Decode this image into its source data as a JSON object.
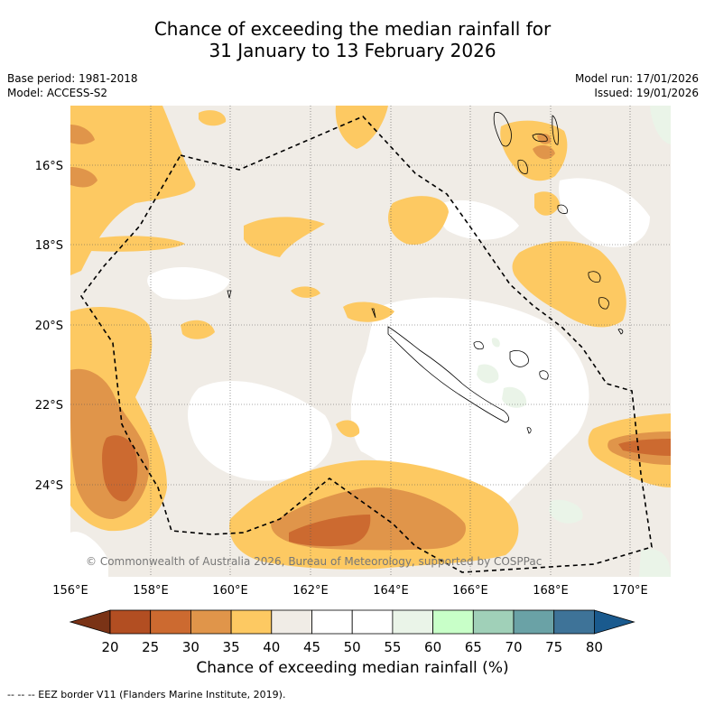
{
  "title_line1": "Chance of exceeding the median rainfall for",
  "title_line2": "31 January to 13 February 2026",
  "base_period": "Base period: 1981-2018",
  "model": "Model: ACCESS-S2",
  "model_run": "Model run: 17/01/2026",
  "issued": "Issued: 19/01/2026",
  "copyright": "© Commonwealth of Australia 2026, Bureau of Meteorology, supported by COSPPac",
  "lat_labels": [
    "16°S",
    "18°S",
    "20°S",
    "22°S",
    "24°S"
  ],
  "lon_labels": [
    "156°E",
    "158°E",
    "160°E",
    "162°E",
    "164°E",
    "166°E",
    "168°E",
    "170°E"
  ],
  "colorbar": {
    "ticks": [
      "20",
      "25",
      "30",
      "35",
      "40",
      "45",
      "50",
      "55",
      "60",
      "65",
      "70",
      "75",
      "80"
    ],
    "colors": [
      "#7a3316",
      "#b24e22",
      "#cc6a30",
      "#e0954a",
      "#fdc962",
      "#f0ece6",
      "#ffffff",
      "#ffffff",
      "#eaf4e8",
      "#c8ffc8",
      "#a0d0b8",
      "#6aa2a6",
      "#3e7398",
      "#1a5a8e"
    ],
    "title": "Chance of exceeding median rainfall (%)"
  },
  "footer": "--  --  -- EEZ border V11 (Flanders Marine Institute, 2019)."
}
